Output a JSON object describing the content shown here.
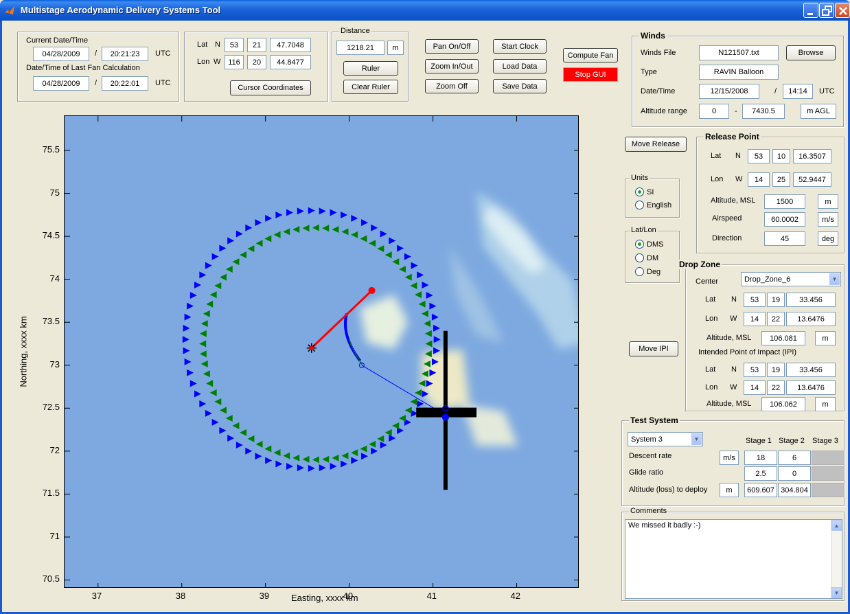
{
  "window": {
    "title": "Multistage Aerodynamic Delivery Systems Tool"
  },
  "datetime": {
    "current_label": "Current Date/Time",
    "current_date": "04/28/2009",
    "current_time": "20:21:23",
    "last_fan_label": "Date/Time of Last Fan Calculation",
    "last_date": "04/28/2009",
    "last_time": "20:22:01",
    "sep": "/",
    "utc": "UTC"
  },
  "cursor": {
    "lat_label": "Lat",
    "lat_dir": "N",
    "lat_deg": "53",
    "lat_min": "21",
    "lat_sec": "47.7048",
    "lon_label": "Lon",
    "lon_dir": "W",
    "lon_deg": "116",
    "lon_min": "20",
    "lon_sec": "44.8477",
    "button": "Cursor Coordinates"
  },
  "distance": {
    "title": "Distance",
    "value": "1218.21",
    "unit": "m",
    "ruler": "Ruler",
    "clear_ruler": "Clear Ruler"
  },
  "toolbar": {
    "pan": "Pan On/Off",
    "zoom_inout": "Zoom In/Out",
    "zoom_off": "Zoom Off",
    "start_clock": "Start Clock",
    "load_data": "Load Data",
    "save_data": "Save Data",
    "compute_fan": "Compute Fan",
    "stop_gui": "Stop GUI"
  },
  "winds": {
    "title": "Winds",
    "file_label": "Winds File",
    "file": "N121507.txt",
    "browse": "Browse",
    "type_label": "Type",
    "type": "RAVIN Balloon",
    "datetime_label": "Date/Time",
    "date": "12/15/2008",
    "sep": "/",
    "time": "14:14",
    "utc": "UTC",
    "alt_label": "Altitude range",
    "alt_min": "0",
    "dash": "-",
    "alt_max": "7430.5",
    "alt_unit": "m AGL"
  },
  "move_release": "Move Release",
  "move_ipi": "Move IPI",
  "release": {
    "title": "Release Point",
    "lat_label": "Lat",
    "lat_dir": "N",
    "lat_deg": "53",
    "lat_min": "10",
    "lat_sec": "16.3507",
    "lon_label": "Lon",
    "lon_dir": "W",
    "lon_deg": "14",
    "lon_min": "25",
    "lon_sec": "52.9447",
    "alt_label": "Altitude, MSL",
    "alt": "1500",
    "alt_unit": "m",
    "airspeed_label": "Airspeed",
    "airspeed": "60.0002",
    "airspeed_unit": "m/s",
    "direction_label": "Direction",
    "direction": "45",
    "direction_unit": "deg"
  },
  "units": {
    "title": "Units",
    "si": "SI",
    "english": "English",
    "selected": "SI"
  },
  "latlon": {
    "title": "Lat/Lon",
    "dms": "DMS",
    "dm": "DM",
    "deg": "Deg",
    "selected": "DMS"
  },
  "dropzone": {
    "title": "Drop Zone",
    "center_label": "Center",
    "center": "Drop_Zone_6",
    "lat_label": "Lat",
    "lat_dir": "N",
    "lat_deg": "53",
    "lat_min": "19",
    "lat_sec": "33.456",
    "lon_label": "Lon",
    "lon_dir": "W",
    "lon_deg": "14",
    "lon_min": "22",
    "lon_sec": "13.6476",
    "alt_label": "Altitude, MSL",
    "alt": "106.081",
    "alt_unit": "m",
    "ipi_label": "Intended Point of Impact (IPI)",
    "ipi_lat_label": "Lat",
    "ipi_lat_dir": "N",
    "ipi_lat_deg": "53",
    "ipi_lat_min": "19",
    "ipi_lat_sec": "33.456",
    "ipi_lon_label": "Lon",
    "ipi_lon_dir": "W",
    "ipi_lon_deg": "14",
    "ipi_lon_min": "22",
    "ipi_lon_sec": "13.6476",
    "ipi_alt_label": "Altitude, MSL",
    "ipi_alt": "106.062",
    "ipi_alt_unit": "m"
  },
  "testsystem": {
    "title": "Test System",
    "system": "System 3",
    "stage1": "Stage 1",
    "stage2": "Stage 2",
    "stage3": "Stage 3",
    "descent_label": "Descent rate",
    "descent_unit": "m/s",
    "descent_s1": "18",
    "descent_s2": "6",
    "glide_label": "Glide ratio",
    "glide_s1": "2.5",
    "glide_s2": "0",
    "alt_label": "Altitude (loss) to deploy",
    "alt_unit": "m",
    "alt_s1": "609.607",
    "alt_s2": "304.804"
  },
  "comments": {
    "title": "Comments",
    "text": "We missed it badly :-)"
  },
  "chart_data": {
    "type": "scatter",
    "xlabel": "Easting, xxxx km",
    "ylabel": "Northing, xxxx km",
    "xlim": [
      36.6,
      42.75
    ],
    "ylim": [
      70.4,
      75.9
    ],
    "x_ticks": [
      37,
      38,
      39,
      40,
      41,
      42
    ],
    "y_ticks": [
      70.5,
      71,
      71.5,
      72,
      72.5,
      73,
      73.5,
      74,
      74.5,
      75,
      75.5
    ],
    "colors": {
      "background": "#7da9e0",
      "blue_ring": "#0000ff",
      "green_ring": "#008000",
      "release_line": "#ff0000",
      "ipi_cross": "#000000"
    },
    "series": [
      {
        "marker": "triangle-right",
        "color": "blue",
        "center": [
          39.55,
          73.3
        ],
        "radius": 1.5
      },
      {
        "marker": "triangle-left",
        "color": "green",
        "center": [
          39.6,
          73.25
        ],
        "radius": 1.35
      }
    ],
    "release_line": [
      [
        39.55,
        73.2
      ],
      [
        40.27,
        73.87
      ]
    ],
    "release_start": [
      39.55,
      73.2
    ],
    "release_end": [
      40.27,
      73.87
    ],
    "track_to_impact": [
      [
        40.15,
        73.0
      ],
      [
        41.15,
        72.42
      ]
    ],
    "ipi_cross_center": [
      41.15,
      72.45
    ]
  }
}
